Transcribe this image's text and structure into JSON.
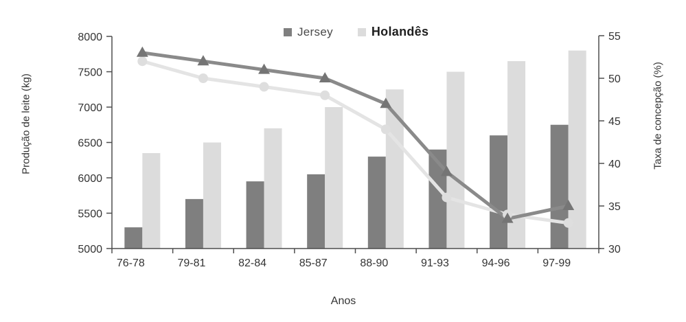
{
  "chart_data": {
    "type": "bar",
    "subtype": "combo-bar-line-dual-axis",
    "title": "",
    "categories": [
      "76-78",
      "79-81",
      "82-84",
      "85-87",
      "88-90",
      "91-93",
      "94-96",
      "97-99"
    ],
    "series": [
      {
        "name": "Jersey",
        "kind": "bar",
        "axis": "left",
        "color": "#7f7f7f",
        "values": [
          5300,
          5700,
          5950,
          6050,
          6300,
          6400,
          6600,
          6750
        ]
      },
      {
        "name": "Holandês",
        "kind": "bar",
        "axis": "left",
        "color": "#dcdcdc",
        "values": [
          6350,
          6500,
          6700,
          7000,
          7250,
          7500,
          7650,
          7800
        ]
      },
      {
        "name": "Jersey",
        "kind": "line",
        "axis": "right",
        "color": "#8a8a8a",
        "marker": "triangle",
        "marker_color": "#757575",
        "values": [
          53,
          52,
          51,
          50,
          47,
          39,
          33.5,
          35
        ]
      },
      {
        "name": "Holandês",
        "kind": "line",
        "axis": "right",
        "color": "#e4e4e4",
        "marker": "circle",
        "marker_color": "#dedede",
        "values": [
          52,
          50,
          49,
          48,
          44,
          36,
          34,
          33
        ]
      }
    ],
    "xlabel": "Anos",
    "ylabel_left": "Produção de leite (kg)",
    "ylabel_right": "Taxa de concepção (%)",
    "left_ticks": [
      5000,
      5500,
      6000,
      6500,
      7000,
      7500,
      8000
    ],
    "right_ticks": [
      30,
      35,
      40,
      45,
      50,
      55
    ],
    "ylim_left": [
      5000,
      8000
    ],
    "ylim_right": [
      30,
      55
    ],
    "grid": false,
    "legend": {
      "position": "top-center",
      "items": [
        "Jersey",
        "Holandês"
      ]
    },
    "axis_color": "#4d4d4d",
    "tick_text_color": "#333333"
  }
}
